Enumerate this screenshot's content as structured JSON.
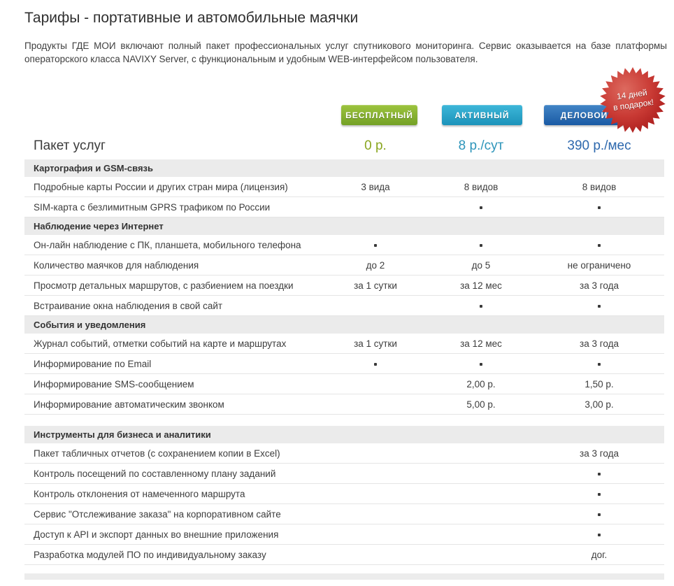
{
  "page": {
    "title": "Тарифы - портативные и автомобильные маячки",
    "description": "Продукты ГДЕ МОИ включают полный пакет профессиональных услуг спутникового мониторинга. Сервис оказывается на базе платформы операторского класса NAVIXY Server, с функциональным и удобным WEB-интерфейсом пользователя."
  },
  "badge": {
    "line1": "14 дней",
    "line2": "в подарок!",
    "color_light": "#dd6a5f",
    "color_mid": "#c93a34",
    "color_dark": "#a81a1a"
  },
  "plans": [
    {
      "label": "БЕСПЛАТНЫЙ",
      "price": "0 р.",
      "accent": "#8aa620"
    },
    {
      "label": "АКТИВНЫЙ",
      "price": "8 р./сут",
      "accent": "#2e95ba"
    },
    {
      "label": "ДЕЛОВОЙ",
      "price": "390 р./мес",
      "accent": "#2d68ad"
    }
  ],
  "table": {
    "header": "Пакет услуг",
    "bullet": "•",
    "sections": [
      {
        "title": "Картография и GSM-связь",
        "gap_before": false,
        "rows": [
          {
            "label": "Подробные карты России и других стран мира (лицензия)",
            "values": [
              "3 вида",
              "8 видов",
              "8 видов"
            ]
          },
          {
            "label": "SIM-карта с безлимитным GPRS трафиком по России",
            "values": [
              "",
              "•",
              "•"
            ]
          }
        ]
      },
      {
        "title": "Наблюдение через Интернет",
        "gap_before": false,
        "rows": [
          {
            "label": "Он-лайн наблюдение с ПК, планшета, мобильного телефона",
            "values": [
              "•",
              "•",
              "•"
            ]
          },
          {
            "label": "Количество маячков для наблюдения",
            "values": [
              "до 2",
              "до 5",
              "не ограничено"
            ]
          },
          {
            "label": "Просмотр детальных маршрутов, с разбиением на поездки",
            "values": [
              "за 1 сутки",
              "за 12 мес",
              "за 3 года"
            ]
          },
          {
            "label": "Встраивание окна наблюдения в свой сайт",
            "values": [
              "",
              "•",
              "•"
            ]
          }
        ]
      },
      {
        "title": "События и уведомления",
        "gap_before": false,
        "rows": [
          {
            "label": "Журнал событий, отметки событий на карте и маршрутах",
            "values": [
              "за 1 сутки",
              "за 12 мес",
              "за 3 года"
            ]
          },
          {
            "label": "Информирование по Email",
            "values": [
              "•",
              "•",
              "•"
            ]
          },
          {
            "label": "Информирование SMS-сообщением",
            "values": [
              "",
              "2,00 р.",
              "1,50 р."
            ]
          },
          {
            "label": "Информирование автоматическим звонком",
            "values": [
              "",
              "5,00 р.",
              "3,00 р."
            ]
          }
        ]
      },
      {
        "title": "Инструменты для бизнеса и аналитики",
        "gap_before": true,
        "rows": [
          {
            "label": "Пакет табличных отчетов (с сохранением копии в Excel)",
            "values": [
              "",
              "",
              "за 3 года"
            ]
          },
          {
            "label": "Контроль посещений по составленному плану заданий",
            "values": [
              "",
              "",
              "•"
            ]
          },
          {
            "label": "Контроль отклонения от намеченного маршрута",
            "values": [
              "",
              "",
              "•"
            ]
          },
          {
            "label": "Сервис \"Отслеживание заказа\" на корпоративном сайте",
            "values": [
              "",
              "",
              "•"
            ]
          },
          {
            "label": "Доступ к API и экспорт данных во внешние приложения",
            "values": [
              "",
              "",
              "•"
            ]
          },
          {
            "label": "Разработка модулей ПО по индивидуальному заказу",
            "values": [
              "",
              "",
              "дог."
            ]
          }
        ]
      }
    ]
  }
}
